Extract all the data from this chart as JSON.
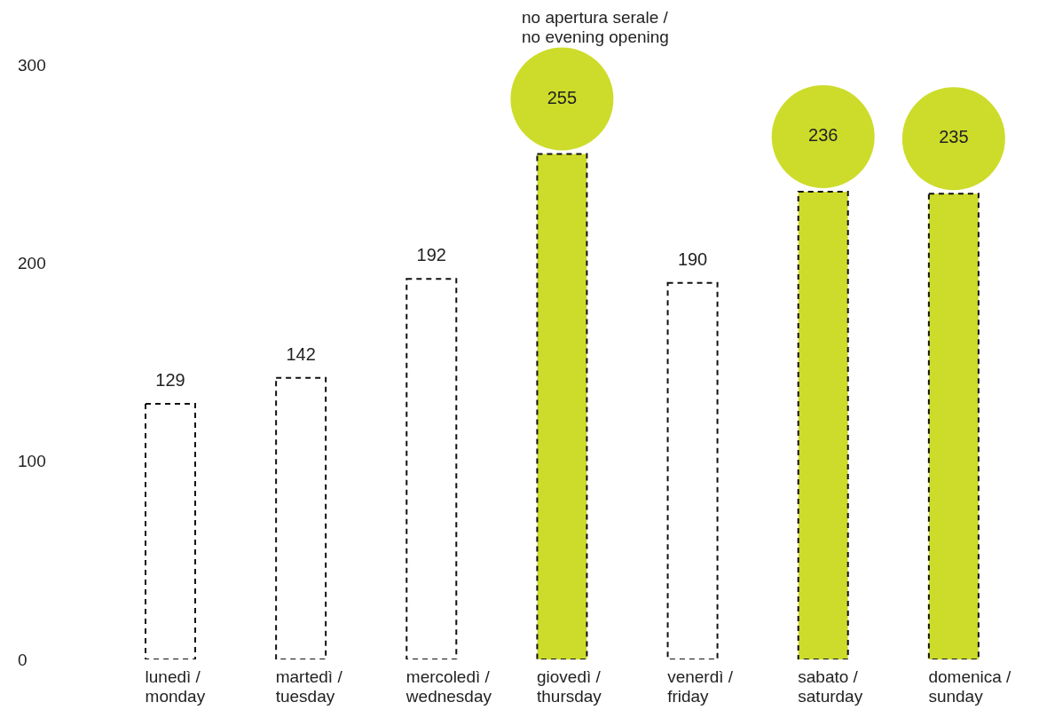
{
  "chart_data": {
    "type": "bar",
    "categories": [
      "lunedì / monday",
      "martedì / tuesday",
      "mercoledì / wednesday",
      "giovedì / thursday",
      "venerdì / friday",
      "sabato / saturday",
      "domenica / sunday"
    ],
    "values": [
      129,
      142,
      192,
      255,
      190,
      236,
      235
    ],
    "colors": [
      null,
      null,
      null,
      "#cddc2a",
      null,
      "#cddc2a",
      "#cddc2a"
    ],
    "data_labels": true,
    "ylim": [
      0,
      300
    ],
    "yticks": [
      0,
      100,
      200,
      300
    ],
    "grid": false,
    "legend": false,
    "line_style": "dashed",
    "annotations": [
      "no apertura serale / no evening opening"
    ]
  }
}
